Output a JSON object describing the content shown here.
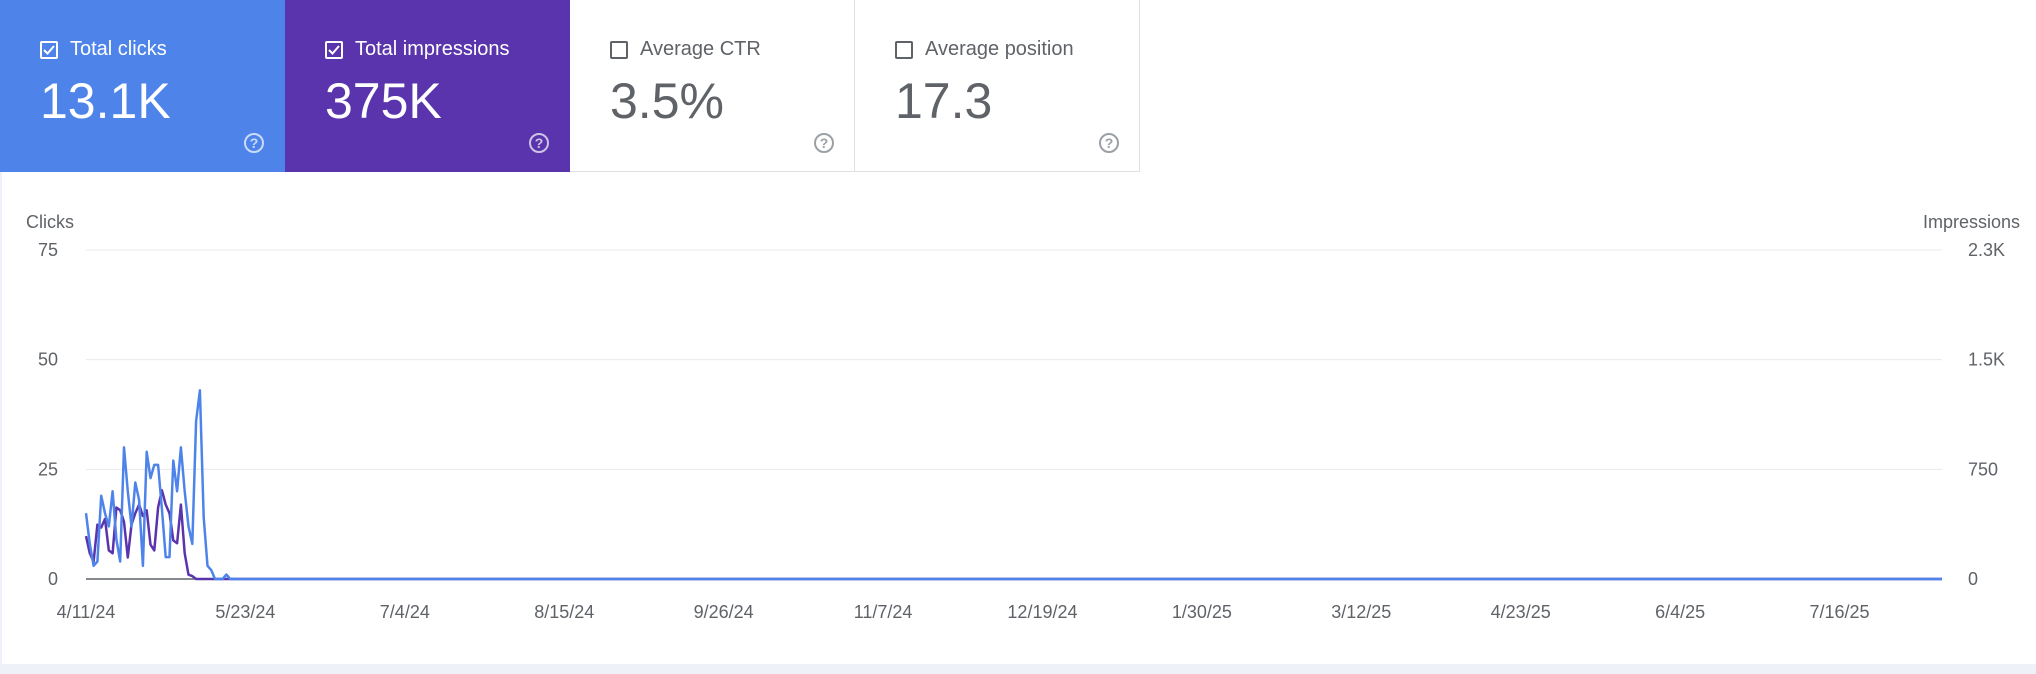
{
  "metrics": [
    {
      "id": "clicks",
      "label": "Total clicks",
      "value": "13.1K",
      "checked": true,
      "color": "#4e84ea"
    },
    {
      "id": "impressions",
      "label": "Total impressions",
      "value": "375K",
      "checked": true,
      "color": "#5a34ad"
    },
    {
      "id": "ctr",
      "label": "Average CTR",
      "value": "3.5%",
      "checked": false
    },
    {
      "id": "position",
      "label": "Average position",
      "value": "17.3",
      "checked": false
    }
  ],
  "help_glyph": "?",
  "chart_data": {
    "type": "line",
    "left_axis_title": "Clicks",
    "right_axis_title": "Impressions",
    "left_ticks": [
      "75",
      "50",
      "25",
      "0"
    ],
    "right_ticks": [
      "2.3K",
      "1.5K",
      "750",
      "0"
    ],
    "ylim_left": [
      0,
      75
    ],
    "ylim_right": [
      0,
      2300
    ],
    "x_ticks": [
      "4/11/24",
      "5/23/24",
      "7/4/24",
      "8/15/24",
      "9/26/24",
      "11/7/24",
      "12/19/24",
      "1/30/25",
      "3/12/25",
      "4/23/25",
      "6/4/25",
      "7/16/25"
    ],
    "x_range": [
      "2024-04-11",
      "2025-08-13"
    ],
    "grid": true,
    "series": [
      {
        "name": "Total impressions",
        "axis": "right",
        "color": "#5a34ad",
        "values": [
          300,
          180,
          120,
          380,
          360,
          420,
          200,
          180,
          500,
          480,
          400,
          150,
          380,
          460,
          520,
          440,
          480,
          240,
          200,
          500,
          620,
          520,
          460,
          270,
          250,
          520,
          180,
          30,
          20,
          0,
          0,
          0,
          0,
          0,
          0,
          0,
          0,
          0,
          0,
          0,
          0,
          0,
          0,
          0,
          0,
          0,
          0,
          0,
          0,
          0,
          0,
          0,
          0,
          0,
          0,
          0,
          0,
          0,
          0,
          0,
          0,
          0,
          0,
          0,
          0,
          0,
          0,
          0,
          0,
          0,
          0,
          0,
          0,
          0,
          0,
          0,
          0,
          0,
          0,
          0,
          0,
          0,
          0,
          0,
          0,
          0,
          0,
          0,
          0,
          0,
          0,
          0,
          0,
          0,
          0,
          0,
          0,
          0,
          0,
          0,
          0,
          0,
          0,
          0,
          0,
          0,
          0,
          0,
          0,
          0,
          0,
          0,
          0,
          0,
          0,
          0,
          0,
          0,
          0,
          0,
          0,
          0,
          0,
          0,
          0,
          0,
          0,
          0,
          0,
          0,
          0,
          0,
          0,
          0,
          0,
          0,
          0,
          0,
          0,
          0,
          0,
          0,
          0,
          0,
          0,
          0,
          0,
          0,
          0,
          0,
          0,
          0,
          0,
          0,
          0,
          0,
          0,
          0,
          0,
          0,
          0,
          0,
          0,
          0,
          0,
          0,
          0,
          0,
          0,
          0,
          0,
          0,
          0,
          0,
          0,
          0,
          0,
          0,
          0,
          0,
          0,
          0,
          0,
          0,
          0,
          0,
          0,
          0,
          0,
          0,
          0,
          0,
          0,
          0,
          0,
          0,
          0,
          0,
          0,
          0,
          0,
          0,
          0,
          0,
          0,
          0,
          0,
          0,
          0,
          0,
          0,
          0,
          0,
          0,
          0,
          0,
          0,
          0,
          0,
          0,
          0,
          0,
          0,
          0,
          0,
          0,
          0,
          0,
          0,
          0,
          0,
          0,
          0,
          0,
          0,
          0,
          0,
          0,
          0,
          0,
          0,
          0,
          0,
          0,
          0,
          0,
          0,
          0,
          0,
          0,
          0,
          0,
          0,
          0,
          0,
          0,
          0,
          0,
          0,
          0,
          0,
          0,
          0,
          0,
          0,
          0,
          0,
          0,
          0,
          0,
          0,
          0,
          0,
          0,
          0,
          0,
          0,
          0,
          0,
          0,
          0,
          0,
          0,
          0,
          0,
          0,
          0,
          0,
          0,
          0,
          0,
          0,
          0,
          0,
          0,
          0,
          0,
          0,
          0,
          0,
          0,
          0,
          0,
          0,
          0,
          0,
          0,
          0,
          0,
          0,
          0,
          0,
          0,
          0,
          0,
          0,
          0,
          0,
          0,
          0,
          0,
          0,
          0,
          0,
          0,
          0,
          0,
          0,
          0,
          0,
          0,
          0,
          0,
          0,
          0,
          0,
          0,
          0,
          0,
          0,
          0,
          0,
          0,
          0,
          0,
          0,
          0,
          0,
          0,
          0,
          0,
          0,
          0,
          0,
          0,
          0,
          0,
          0,
          0,
          0,
          0,
          0,
          0,
          0,
          0,
          0,
          0,
          0,
          0,
          0,
          0,
          0,
          0,
          0,
          0,
          0,
          0,
          0,
          0,
          0,
          0,
          0,
          0,
          0,
          0,
          0,
          0,
          0,
          0,
          0,
          0,
          0,
          0,
          0,
          0,
          0,
          0,
          0,
          0,
          0,
          0,
          0,
          0,
          0,
          0,
          0,
          0,
          0,
          0,
          0,
          0,
          0,
          0,
          0,
          0,
          0,
          0,
          0,
          0,
          0,
          0,
          0,
          0,
          0,
          0,
          0,
          0,
          0,
          0,
          0,
          0,
          0,
          0,
          0,
          0,
          0,
          0,
          0,
          0,
          0,
          0,
          0,
          0,
          0,
          0,
          0,
          0,
          0,
          0,
          0,
          0,
          0,
          0,
          0,
          0,
          0,
          0,
          0,
          0,
          0,
          0,
          0,
          0,
          0,
          0,
          0,
          0,
          0,
          0,
          0,
          0,
          0,
          0,
          0,
          0,
          0,
          0,
          0,
          0,
          0,
          0,
          0,
          0,
          0,
          0,
          0,
          0,
          0,
          0,
          0,
          0,
          0,
          0,
          0,
          0,
          0,
          0,
          0,
          0,
          0,
          0,
          0,
          0,
          0,
          0,
          0,
          0,
          0,
          0,
          0,
          0,
          0,
          0,
          0,
          0,
          0,
          0,
          0,
          0,
          0,
          0,
          0,
          0,
          0,
          0,
          0,
          0,
          0,
          0,
          0,
          0,
          0,
          0,
          0,
          0,
          0,
          0,
          0,
          0,
          0,
          0,
          0,
          0,
          0,
          0,
          0,
          0,
          0,
          0,
          0,
          0,
          0,
          0,
          0,
          0,
          0,
          0,
          0,
          0,
          0,
          0,
          0,
          0,
          0,
          0,
          0,
          0,
          0,
          0,
          0,
          0,
          0,
          0,
          0,
          0,
          0,
          0,
          0,
          0,
          0,
          0,
          0,
          0,
          0,
          0,
          0,
          0,
          0,
          0,
          0,
          0,
          0,
          0,
          0,
          0
        ]
      },
      {
        "name": "Total clicks",
        "axis": "left",
        "color": "#4e84ea",
        "values": [
          15,
          8,
          3,
          4,
          19,
          15,
          12,
          20,
          9,
          4,
          30,
          20,
          12,
          22,
          18,
          3,
          29,
          23,
          26,
          26,
          16,
          5,
          5,
          27,
          20,
          30,
          20,
          12,
          8,
          36,
          43,
          14,
          3,
          2,
          0,
          0,
          0,
          1,
          0,
          0,
          0,
          0,
          0,
          0,
          0,
          0,
          0,
          0,
          0,
          0,
          0,
          0,
          0,
          0,
          0,
          0,
          0,
          0,
          0,
          0,
          0,
          0,
          0,
          0,
          0,
          0,
          0,
          0,
          0,
          0,
          0,
          0,
          0,
          0,
          0,
          0,
          0,
          0,
          0,
          0,
          0,
          0,
          0,
          0,
          0,
          0,
          0,
          0,
          0,
          0,
          0,
          0,
          0,
          0,
          0,
          0,
          0,
          0,
          0,
          0,
          0,
          0,
          0,
          0,
          0,
          0,
          0,
          0,
          0,
          0,
          0,
          0,
          0,
          0,
          0,
          0,
          0,
          0,
          0,
          0,
          0,
          0,
          0,
          0,
          0,
          0,
          0,
          0,
          0,
          0,
          0,
          0,
          0,
          0,
          0,
          0,
          0,
          0,
          0,
          0,
          0,
          0,
          0,
          0,
          0,
          0,
          0,
          0,
          0,
          0,
          0,
          0,
          0,
          0,
          0,
          0,
          0,
          0,
          0,
          0,
          0,
          0,
          0,
          0,
          0,
          0,
          0,
          0,
          0,
          0,
          0,
          0,
          0,
          0,
          0,
          0,
          0,
          0,
          0,
          0,
          0,
          0,
          0,
          0,
          0,
          0,
          0,
          0,
          0,
          0,
          0,
          0,
          0,
          0,
          0,
          0,
          0,
          0,
          0,
          0,
          0,
          0,
          0,
          0,
          0,
          0,
          0,
          0,
          0,
          0,
          0,
          0,
          0,
          0,
          0,
          0,
          0,
          0,
          0,
          0,
          0,
          0,
          0,
          0,
          0,
          0,
          0,
          0,
          0,
          0,
          0,
          0,
          0,
          0,
          0,
          0,
          0,
          0,
          0,
          0,
          0,
          0,
          0,
          0,
          0,
          0,
          0,
          0,
          0,
          0,
          0,
          0,
          0,
          0,
          0,
          0,
          0,
          0,
          0,
          0,
          0,
          0,
          0,
          0,
          0,
          0,
          0,
          0,
          0,
          0,
          0,
          0,
          0,
          0,
          0,
          0,
          0,
          0,
          0,
          0,
          0,
          0,
          0,
          0,
          0,
          0,
          0,
          0,
          0,
          0,
          0,
          0,
          0,
          0,
          0,
          0,
          0,
          0,
          0,
          0,
          0,
          0,
          0,
          0,
          0,
          0,
          0,
          0,
          0,
          0,
          0,
          0,
          0,
          0,
          0,
          0,
          0,
          0,
          0,
          0,
          0,
          0,
          0,
          0,
          0,
          0,
          0,
          0,
          0,
          0,
          0,
          0,
          0,
          0,
          0,
          0,
          0,
          0,
          0,
          0,
          0,
          0,
          0,
          0,
          0,
          0,
          0,
          0,
          0,
          0,
          0,
          0,
          0,
          0,
          0,
          0,
          0,
          0,
          0,
          0,
          0,
          0,
          0,
          0,
          0,
          0,
          0,
          0,
          0,
          0,
          0,
          0,
          0,
          0,
          0,
          0,
          0,
          0,
          0,
          0,
          0,
          0,
          0,
          0,
          0,
          0,
          0,
          0,
          0,
          0,
          0,
          0,
          0,
          0,
          0,
          0,
          0,
          0,
          0,
          0,
          0,
          0,
          0,
          0,
          0,
          0,
          0,
          0,
          0,
          0,
          0,
          0,
          0,
          0,
          0,
          0,
          0,
          0,
          0,
          0,
          0,
          0,
          0,
          0,
          0,
          0,
          0,
          0,
          0,
          0,
          0,
          0,
          0,
          0,
          0,
          0,
          0,
          0,
          0,
          0,
          0,
          0,
          0,
          0,
          0,
          0,
          0,
          0,
          0,
          0,
          0,
          0,
          0,
          0,
          0,
          0,
          0,
          0,
          0,
          0,
          0,
          0,
          0,
          0,
          0,
          0,
          0,
          0,
          0,
          0,
          0,
          0,
          0,
          0,
          0,
          0,
          0,
          0,
          0,
          0,
          0,
          0,
          0,
          0,
          0,
          0,
          0,
          0,
          0,
          0,
          0,
          0,
          0,
          0,
          0,
          0,
          0,
          0,
          0,
          0,
          0,
          0,
          0,
          0,
          0,
          0,
          0,
          0,
          0,
          0,
          0,
          0,
          0,
          0,
          0,
          0,
          0,
          0,
          0,
          0,
          0,
          0,
          0,
          0,
          0,
          0,
          0,
          0,
          0,
          0,
          0,
          0,
          0,
          0,
          0,
          0,
          0,
          0,
          0,
          0,
          0,
          0,
          0,
          0,
          0,
          0,
          0,
          0,
          0,
          0,
          0,
          0,
          0,
          0,
          0,
          0,
          0,
          0,
          0,
          0,
          0,
          0,
          0,
          0,
          0,
          0,
          0,
          0,
          0,
          0,
          0,
          0,
          0,
          0,
          0,
          0,
          0,
          0,
          0,
          0,
          0,
          0,
          0,
          0,
          0,
          0,
          0,
          0,
          0,
          0,
          0,
          0,
          0,
          0,
          0,
          0,
          0,
          0
        ]
      }
    ]
  }
}
